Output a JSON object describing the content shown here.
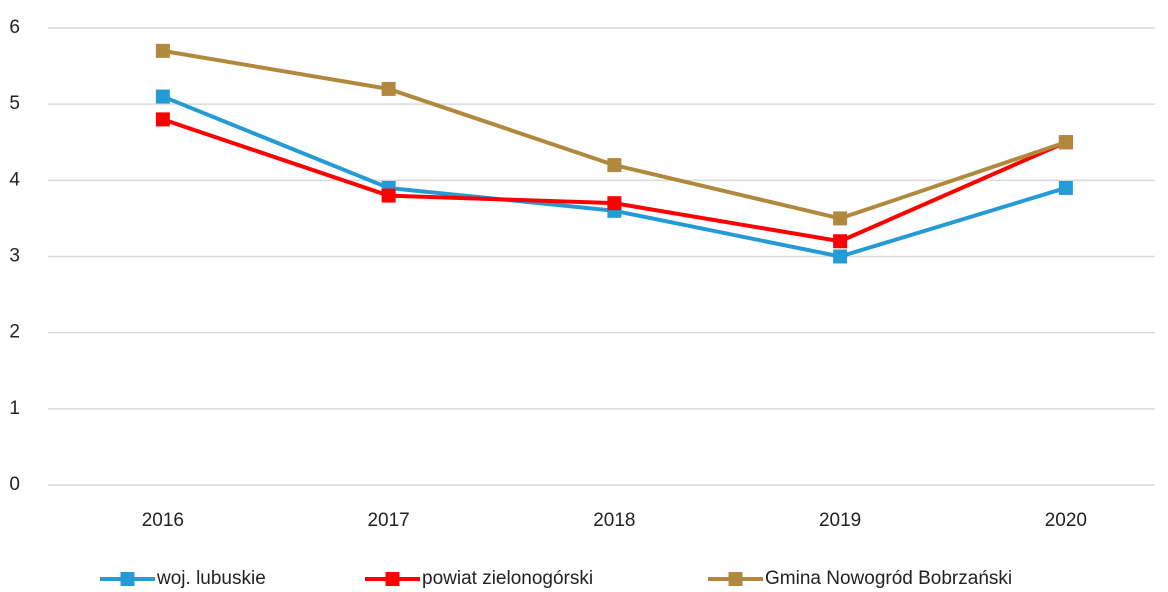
{
  "chart_data": {
    "type": "line",
    "categories": [
      "2016",
      "2017",
      "2018",
      "2019",
      "2020"
    ],
    "series": [
      {
        "name": "woj. lubuskie",
        "color": "#259bd6",
        "values": [
          5.1,
          3.9,
          3.6,
          3.0,
          3.9
        ]
      },
      {
        "name": "powiat zielonogórski",
        "color": "#ff0000",
        "values": [
          4.8,
          3.8,
          3.7,
          3.2,
          4.5
        ]
      },
      {
        "name": "Gmina Nowogród Bobrzański",
        "color": "#b0893c",
        "values": [
          5.7,
          5.2,
          4.2,
          3.5,
          4.5
        ]
      }
    ],
    "ylim": [
      0,
      6
    ],
    "yticks": [
      0,
      1,
      2,
      3,
      4,
      5,
      6
    ],
    "grid": true,
    "legend": "bottom"
  }
}
